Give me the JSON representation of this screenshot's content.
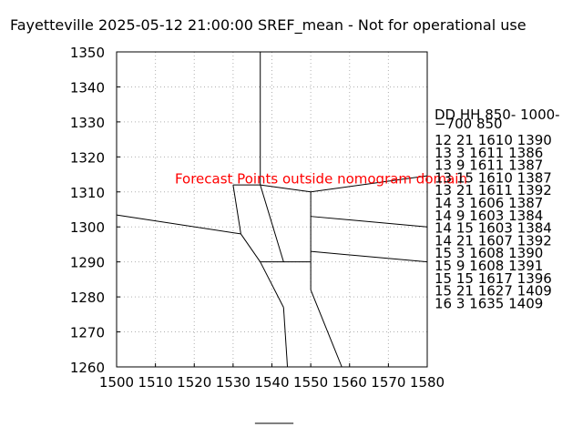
{
  "chart_data": {
    "type": "line",
    "title": "Fayetteville 2025-05-12 21:00:00 SREF_mean - Not for operational use",
    "xlabel": "",
    "ylabel": "",
    "xlim": [
      1500,
      1580
    ],
    "ylim": [
      1260,
      1350
    ],
    "x_ticks": [
      1500,
      1510,
      1520,
      1530,
      1540,
      1550,
      1560,
      1570,
      1580
    ],
    "y_ticks": [
      1260,
      1270,
      1280,
      1290,
      1300,
      1310,
      1320,
      1330,
      1340,
      1350
    ],
    "grid": true,
    "annotation": {
      "text": "Forecast Points outside nomogram domain",
      "color": "#ff0000",
      "x": 1515,
      "y": 1313.7
    },
    "lines": [
      [
        [
          1537,
          1350
        ],
        [
          1537,
          1312
        ]
      ],
      [
        [
          1500,
          1303.4
        ],
        [
          1532,
          1298
        ]
      ],
      [
        [
          1530,
          1312
        ],
        [
          1532,
          1298
        ]
      ],
      [
        [
          1530,
          1312
        ],
        [
          1537,
          1312
        ]
      ],
      [
        [
          1537,
          1312
        ],
        [
          1550,
          1310
        ]
      ],
      [
        [
          1550,
          1310
        ],
        [
          1580,
          1314.6
        ]
      ],
      [
        [
          1537,
          1312
        ],
        [
          1543,
          1290
        ]
      ],
      [
        [
          1532,
          1298
        ],
        [
          1537,
          1290
        ]
      ],
      [
        [
          1537,
          1290
        ],
        [
          1550,
          1290
        ]
      ],
      [
        [
          1550,
          1310
        ],
        [
          1550,
          1282
        ]
      ],
      [
        [
          1550,
          1303
        ],
        [
          1580,
          1300
        ]
      ],
      [
        [
          1550,
          1293
        ],
        [
          1580,
          1290
        ]
      ],
      [
        [
          1537,
          1290
        ],
        [
          1543,
          1277
        ]
      ],
      [
        [
          1543,
          1277
        ],
        [
          1544,
          1260
        ]
      ],
      [
        [
          1550,
          1282
        ],
        [
          1558,
          1260
        ]
      ]
    ],
    "table": {
      "header": [
        "DD   HH 850- 1000-",
        "     −700   850"
      ],
      "rows": [
        "12 21 1610 1390",
        "13  3 1611 1386",
        "13  9 1611 1387",
        "13 15 1610 1387",
        "13 21 1611 1392",
        "14  3 1606 1387",
        "14  9 1603 1384",
        "14 15 1603 1384",
        "14 21 1607 1392",
        "15  3 1608 1390",
        "15  9 1608 1391",
        "15 15 1617 1396",
        "15 21 1627 1409",
        "16  3 1635 1409"
      ]
    },
    "footer_mark": "______"
  }
}
